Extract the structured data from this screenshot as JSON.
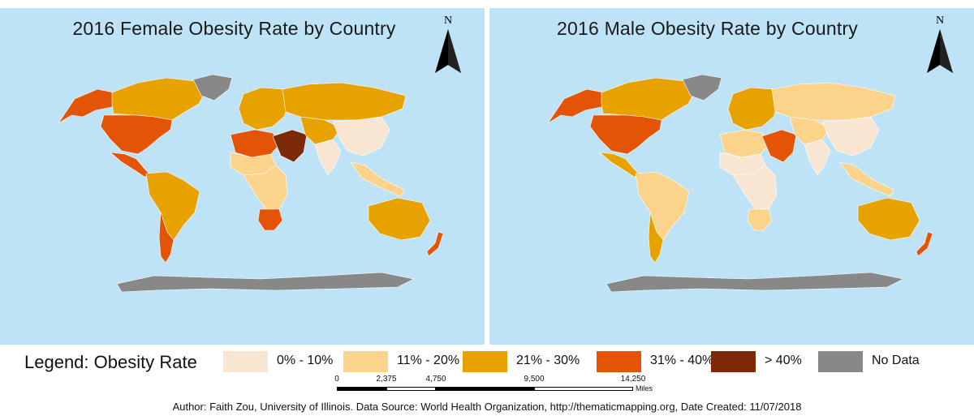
{
  "maps": {
    "female": {
      "title": "2016 Female Obesity Rate by Country",
      "north_label": "N",
      "region_classes": {
        "north_america": "31% - 40%",
        "alaska": "31% - 40%",
        "canada": "21% - 30%",
        "greenland": "No Data",
        "central_america": "31% - 40%",
        "south_america": "21% - 30%",
        "chile_argentina": "31% - 40%",
        "europe": "21% - 30%",
        "russia": "21% - 30%",
        "north_africa": "31% - 40%",
        "sahel": "11% - 20%",
        "central_africa": "11% - 20%",
        "southern_africa": "31% - 40%",
        "middle_east": "> 40%",
        "central_asia": "21% - 30%",
        "china": "0% - 10%",
        "india": "0% - 10%",
        "southeast_asia": "11% - 20%",
        "australia": "21% - 30%",
        "new_zealand": "31% - 40%",
        "antarctica": "No Data"
      }
    },
    "male": {
      "title": "2016 Male Obesity Rate by Country",
      "north_label": "N",
      "region_classes": {
        "north_america": "31% - 40%",
        "alaska": "31% - 40%",
        "canada": "21% - 30%",
        "greenland": "No Data",
        "central_america": "21% - 30%",
        "south_america": "11% - 20%",
        "chile_argentina": "21% - 30%",
        "europe": "21% - 30%",
        "russia": "11% - 20%",
        "north_africa": "11% - 20%",
        "sahel": "0% - 10%",
        "central_africa": "0% - 10%",
        "southern_africa": "11% - 20%",
        "middle_east": "31% - 40%",
        "central_asia": "11% - 20%",
        "china": "0% - 10%",
        "india": "0% - 10%",
        "southeast_asia": "11% - 20%",
        "australia": "21% - 30%",
        "new_zealand": "31% - 40%",
        "antarctica": "No Data"
      }
    }
  },
  "legend": {
    "title": "Legend: Obesity Rate",
    "items": [
      {
        "label": "0% - 10%",
        "color": "#f9e6d2"
      },
      {
        "label": "11% - 20%",
        "color": "#fcd38a"
      },
      {
        "label": "21% - 30%",
        "color": "#e8a200"
      },
      {
        "label": "31% - 40%",
        "color": "#e35406"
      },
      {
        "label": "> 40%",
        "color": "#7b2a05"
      },
      {
        "label": "No Data",
        "color": "#888888"
      }
    ]
  },
  "scale_bar": {
    "ticks": [
      "0",
      "2,375",
      "4,750",
      "9,500",
      "14,250"
    ],
    "units": "Miles"
  },
  "credit": "Author: Faith Zou, University of Illinois. Data Source: World Health Organization, http://thematicmapping.org, Date Created: 11/07/2018",
  "colors": {
    "ocean": "#bfe3f6",
    "no_data": "#888888"
  }
}
